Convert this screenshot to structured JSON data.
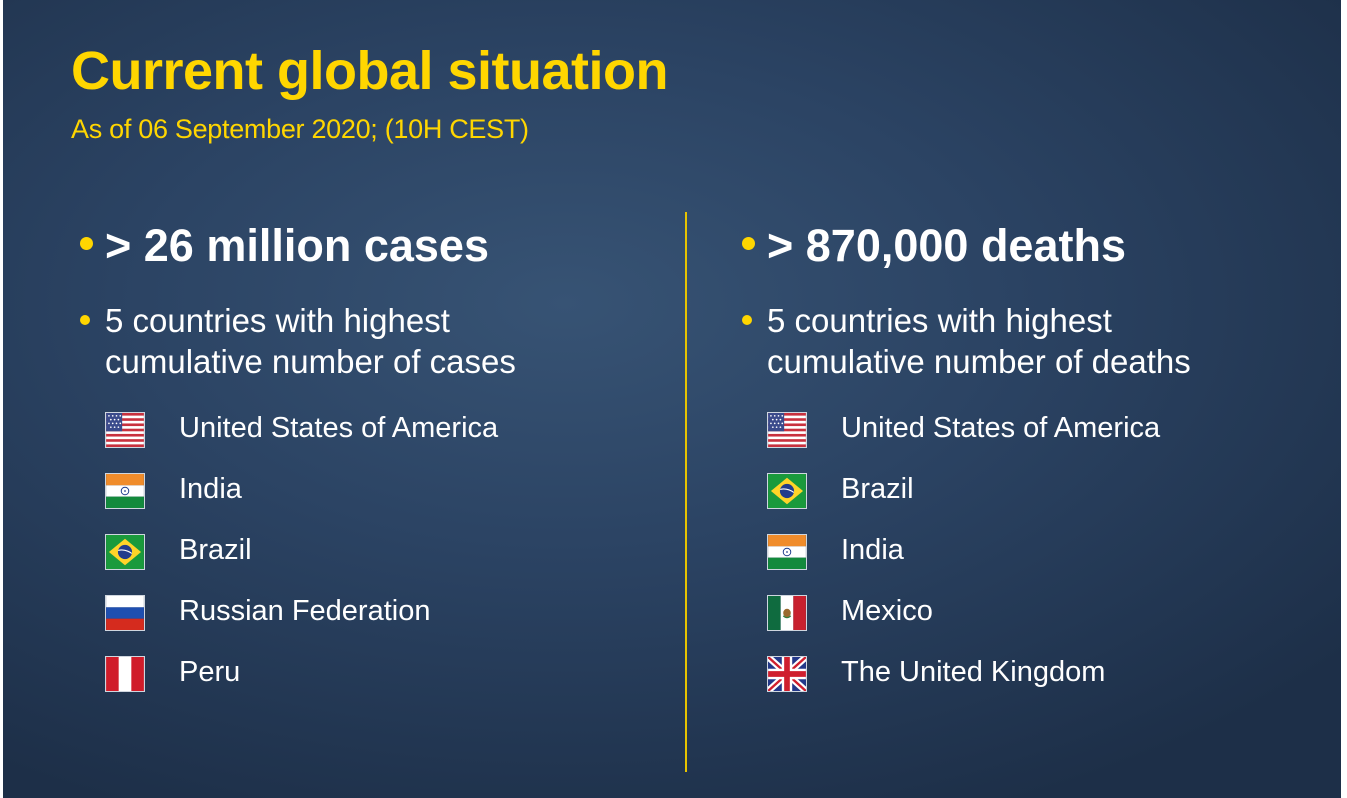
{
  "slide": {
    "title": "Current global situation",
    "subtitle": "As of 06 September 2020; (10H CEST)",
    "accent_color": "#ffd600",
    "background_color": "#2b4363"
  },
  "left": {
    "headline": "> 26 million cases",
    "sub_line1": "5 countries with highest",
    "sub_line2": "cumulative number of cases",
    "countries": [
      {
        "name": "United States of America",
        "flag": "usa-flag-icon"
      },
      {
        "name": "India",
        "flag": "india-flag-icon"
      },
      {
        "name": "Brazil",
        "flag": "brazil-flag-icon"
      },
      {
        "name": "Russian Federation",
        "flag": "russia-flag-icon"
      },
      {
        "name": "Peru",
        "flag": "peru-flag-icon"
      }
    ]
  },
  "right": {
    "headline": "> 870,000 deaths",
    "sub_line1": "5 countries with highest",
    "sub_line2": "cumulative number of deaths",
    "countries": [
      {
        "name": "United States of America",
        "flag": "usa-flag-icon"
      },
      {
        "name": "Brazil",
        "flag": "brazil-flag-icon"
      },
      {
        "name": "India",
        "flag": "india-flag-icon"
      },
      {
        "name": "Mexico",
        "flag": "mexico-flag-icon"
      },
      {
        "name": "The United Kingdom",
        "flag": "uk-flag-icon"
      }
    ]
  }
}
